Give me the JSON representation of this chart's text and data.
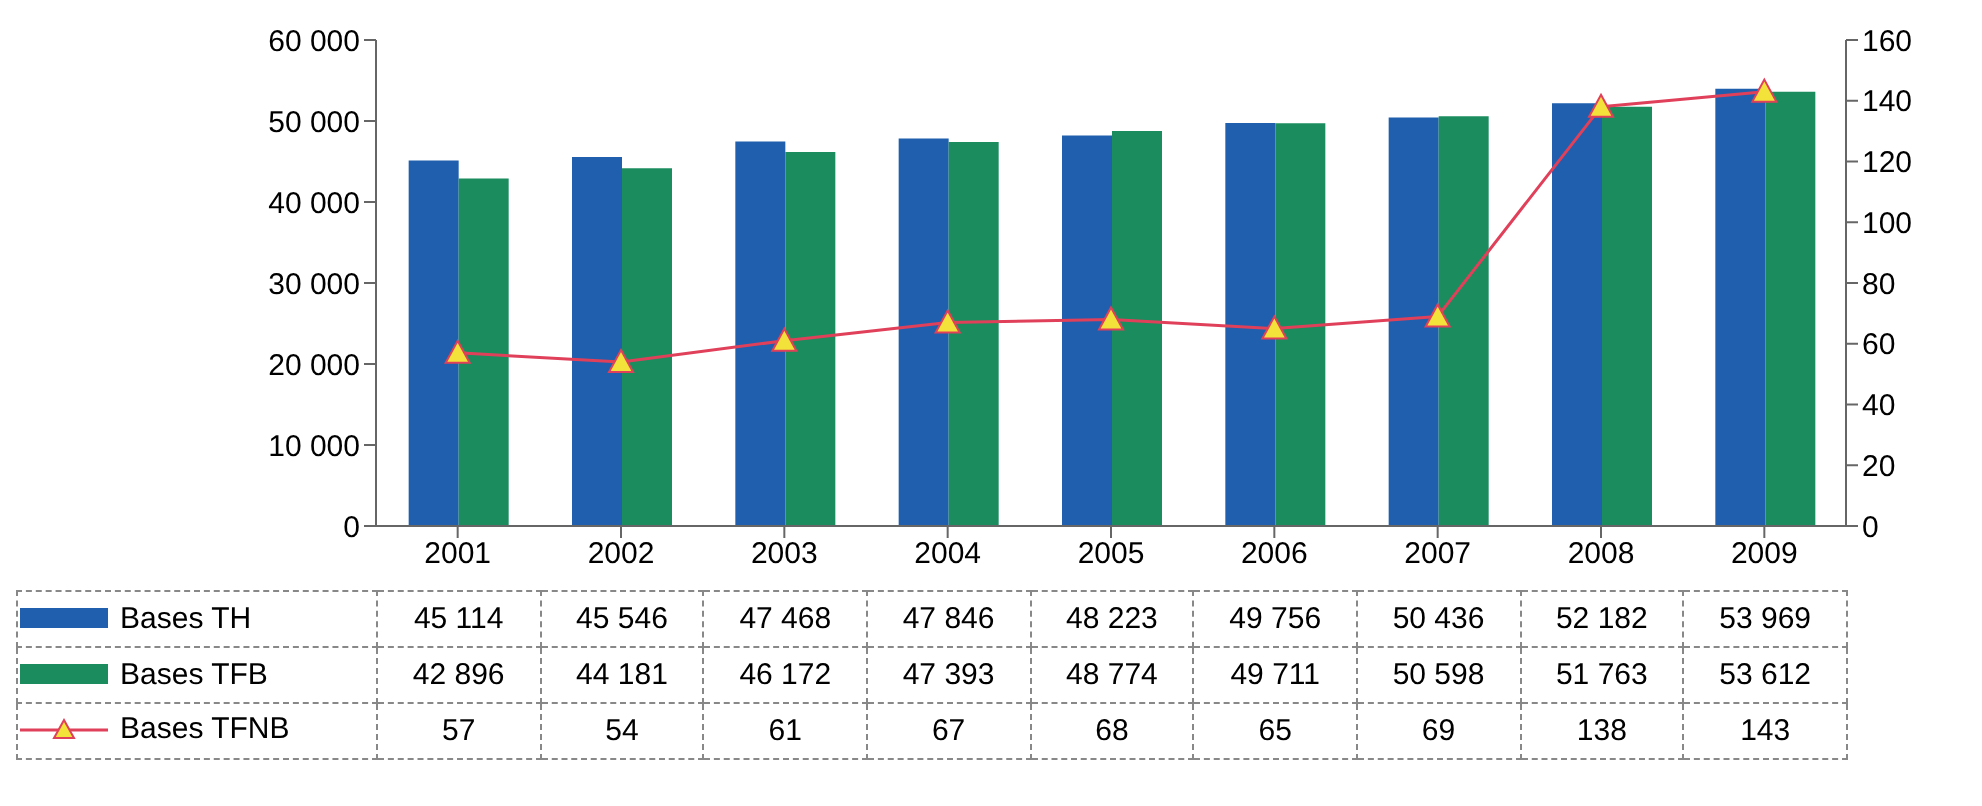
{
  "chart_data": {
    "type": "bar",
    "categories": [
      "2001",
      "2002",
      "2003",
      "2004",
      "2005",
      "2006",
      "2007",
      "2008",
      "2009"
    ],
    "series": [
      {
        "name": "Bases TH",
        "color": "#1f5fae",
        "values": [
          45114,
          45546,
          47468,
          47846,
          48223,
          49756,
          50436,
          52182,
          53969
        ],
        "value_labels": [
          "45 114",
          "45 546",
          "47 468",
          "47 846",
          "48 223",
          "49 756",
          "50 436",
          "52 182",
          "53 969"
        ]
      },
      {
        "name": "Bases TFB",
        "color": "#1b8c5e",
        "values": [
          42896,
          44181,
          46172,
          47393,
          48774,
          49711,
          50598,
          51763,
          53612
        ],
        "value_labels": [
          "42 896",
          "44 181",
          "46 172",
          "47 393",
          "48 774",
          "49 711",
          "50 598",
          "51 763",
          "53 612"
        ]
      },
      {
        "name": "Bases TFNB",
        "type": "line",
        "axis": "y2",
        "color": "#e0405a",
        "marker": "triangle",
        "values": [
          57,
          54,
          61,
          67,
          68,
          65,
          69,
          138,
          143
        ],
        "value_labels": [
          "57",
          "54",
          "61",
          "67",
          "68",
          "65",
          "69",
          "138",
          "143"
        ]
      }
    ],
    "ylim": [
      0,
      60000
    ],
    "yticks": [
      0,
      {
        "value": 10000,
        "label": "10 000"
      },
      {
        "value": 20000,
        "label": "20 000"
      },
      {
        "value": 30000,
        "label": "30 000"
      },
      {
        "value": 40000,
        "label": "40 000"
      },
      {
        "value": 50000,
        "label": "50 000"
      },
      {
        "value": 60000,
        "label": "60 000"
      }
    ],
    "y2lim": [
      0,
      160
    ],
    "y2ticks": [
      0,
      20,
      40,
      60,
      80,
      100,
      120,
      140,
      160
    ],
    "legend": "bottom",
    "grid": false
  }
}
